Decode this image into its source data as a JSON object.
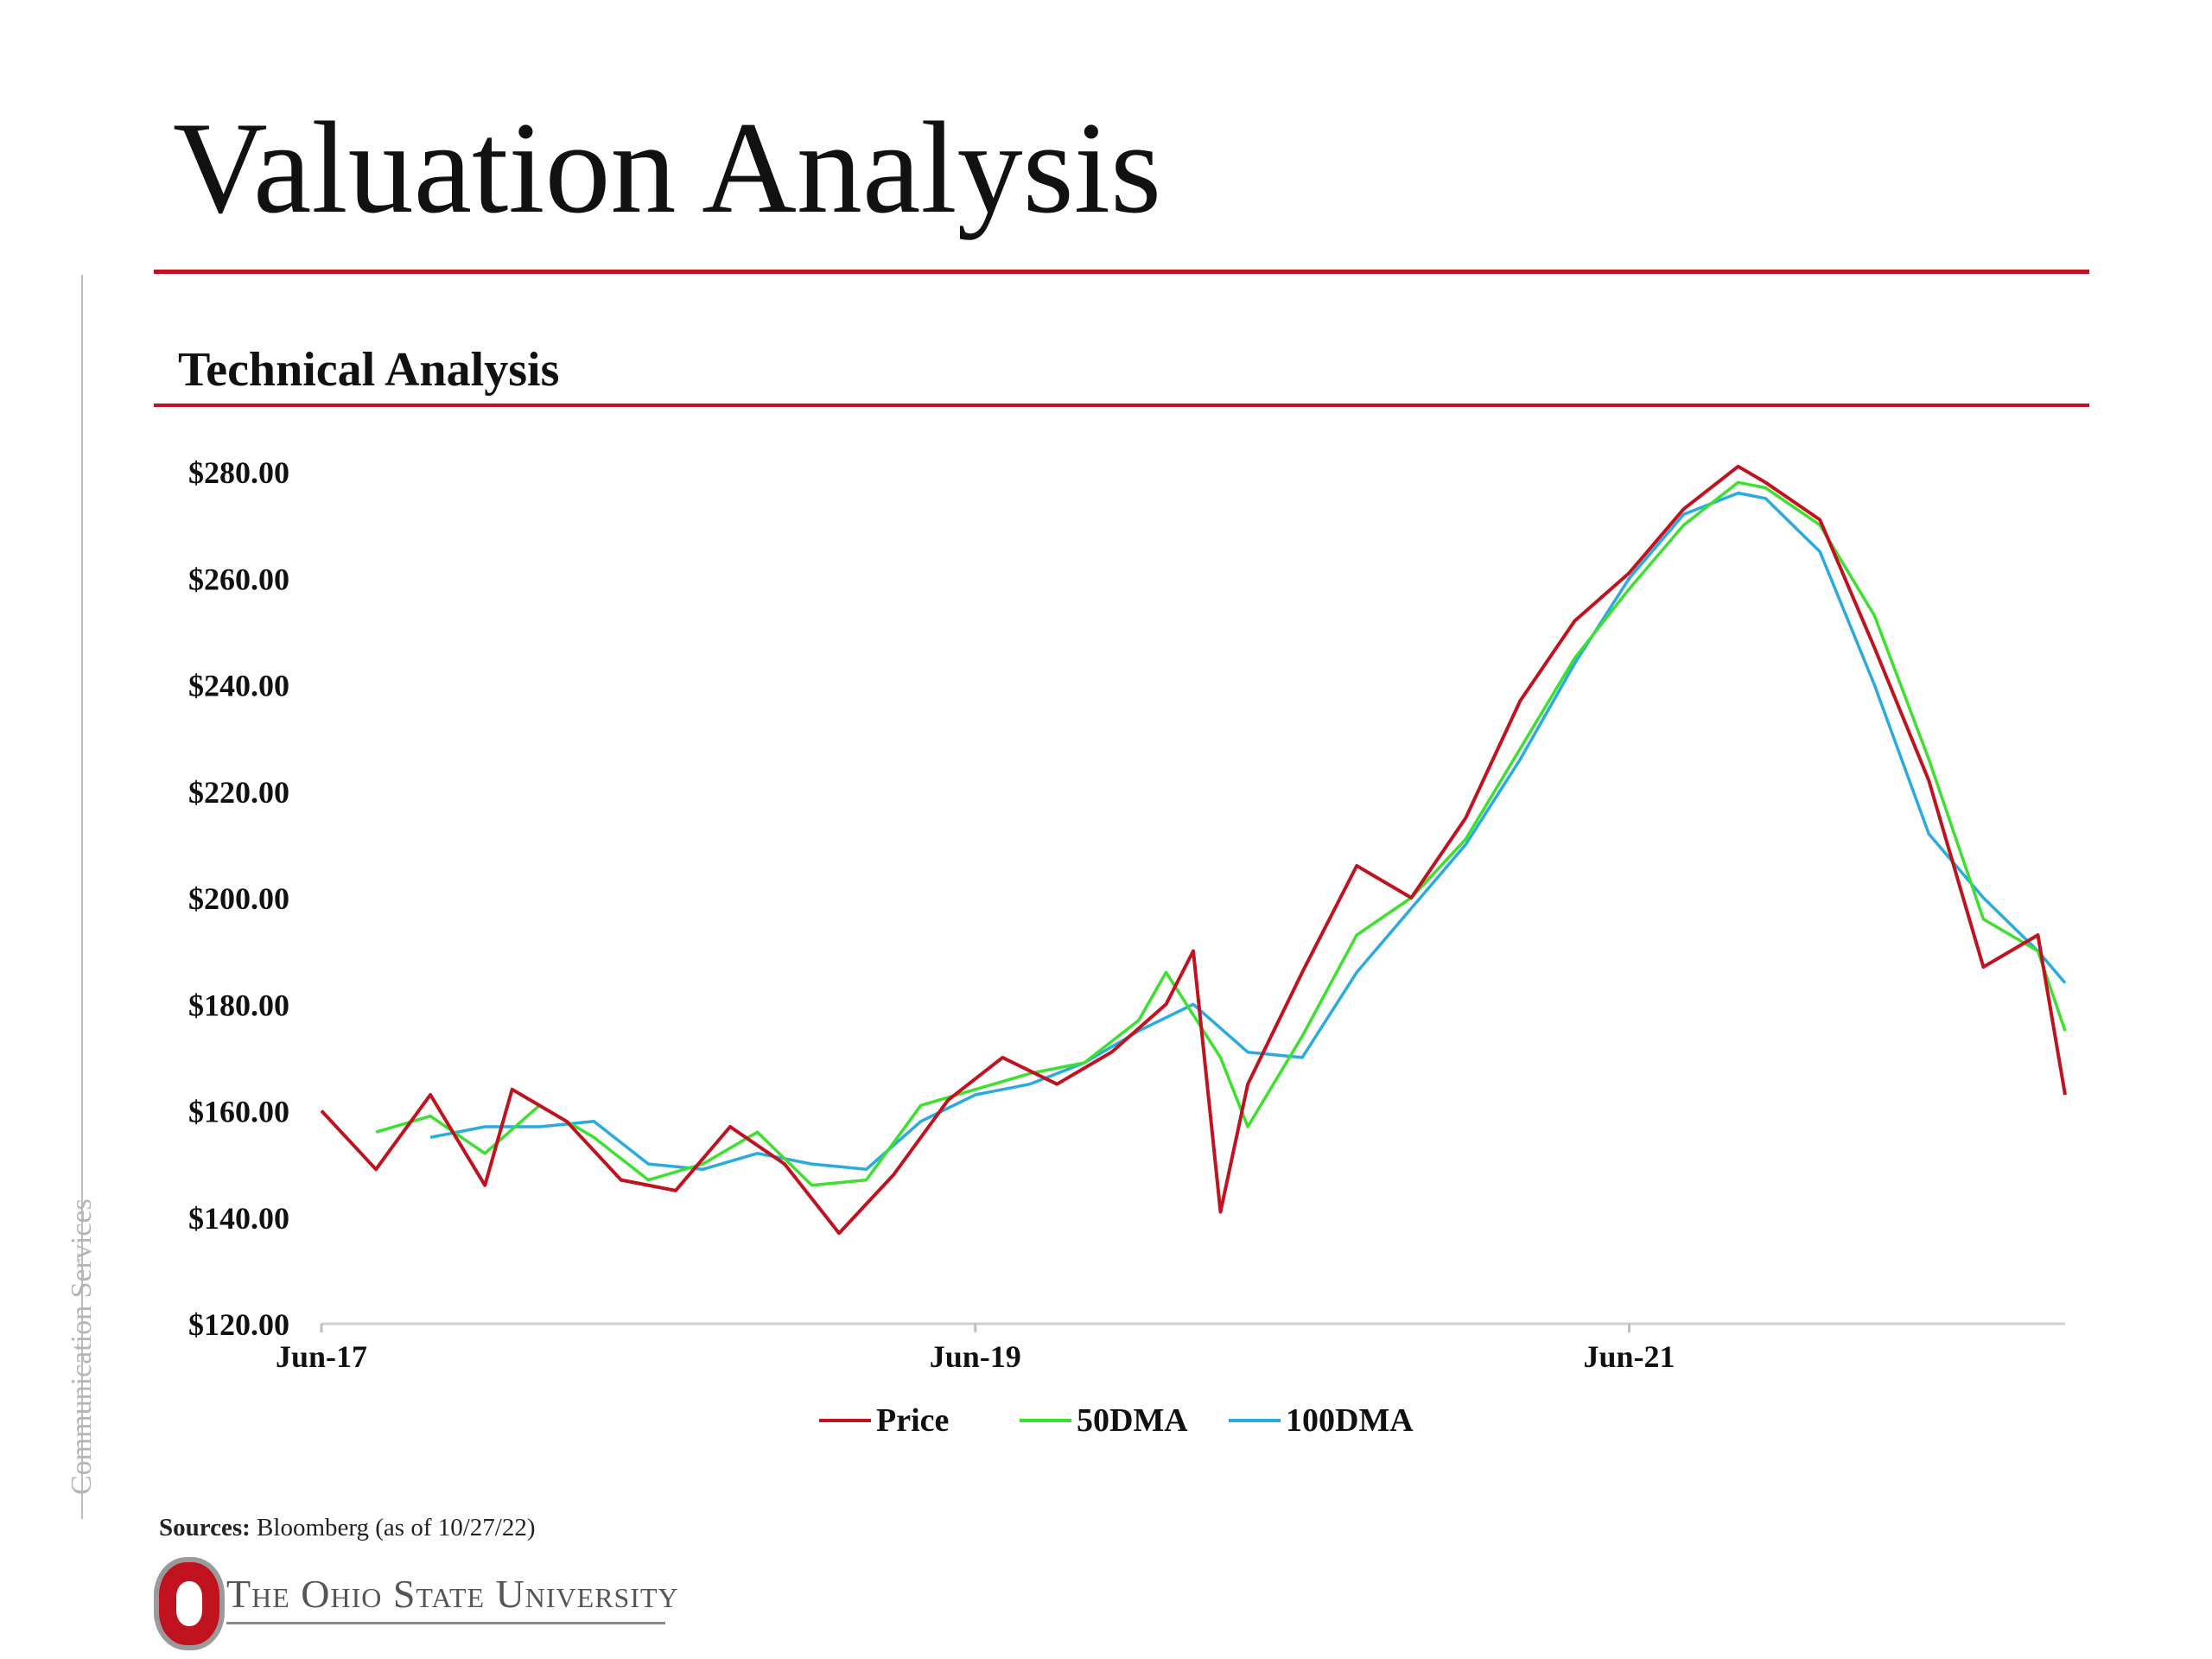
{
  "slide": {
    "title": "Valuation Analysis",
    "subtitle": "Technical Analysis",
    "side_label": "Communication Services",
    "sources_label": "Sources:",
    "sources_text": "Bloomberg (as of 10/27/22)",
    "university": "The Ohio State University",
    "accent_color": "#c1121f"
  },
  "chart_data": {
    "type": "line",
    "title": "",
    "xlabel": "",
    "ylabel": "",
    "x_ticks": [
      "Jun-17",
      "Jun-19",
      "Jun-21"
    ],
    "x_range": [
      "2017-06",
      "2022-10"
    ],
    "ylim": [
      120,
      280
    ],
    "y_ticks": [
      120,
      140,
      160,
      180,
      200,
      220,
      240,
      260,
      280
    ],
    "y_tick_labels": [
      "$120.00",
      "$140.00",
      "$160.00",
      "$180.00",
      "$200.00",
      "$220.00",
      "$240.00",
      "$260.00",
      "$280.00"
    ],
    "grid": false,
    "legend_position": "bottom",
    "series": [
      {
        "name": "Price",
        "color": "#c1121f",
        "x": [
          "2017-06",
          "2017-08",
          "2017-10",
          "2017-12",
          "2018-01",
          "2018-03",
          "2018-05",
          "2018-07",
          "2018-09",
          "2018-11",
          "2019-01",
          "2019-03",
          "2019-05",
          "2019-07",
          "2019-09",
          "2019-11",
          "2020-01",
          "2020-02",
          "2020-03",
          "2020-04",
          "2020-06",
          "2020-08",
          "2020-10",
          "2020-12",
          "2021-02",
          "2021-04",
          "2021-06",
          "2021-08",
          "2021-10",
          "2021-11",
          "2022-01",
          "2022-03",
          "2022-05",
          "2022-07",
          "2022-09",
          "2022-10"
        ],
        "values": [
          160,
          149,
          163,
          146,
          164,
          158,
          147,
          145,
          157,
          150,
          137,
          148,
          162,
          170,
          165,
          171,
          180,
          190,
          141,
          165,
          186,
          206,
          200,
          215,
          237,
          252,
          261,
          273,
          281,
          278,
          271,
          247,
          222,
          187,
          193,
          163
        ]
      },
      {
        "name": "50DMA",
        "color": "#3ee02f",
        "x": [
          "2017-08",
          "2017-10",
          "2017-12",
          "2018-02",
          "2018-04",
          "2018-06",
          "2018-08",
          "2018-10",
          "2018-12",
          "2019-02",
          "2019-04",
          "2019-06",
          "2019-08",
          "2019-10",
          "2019-12",
          "2020-01",
          "2020-03",
          "2020-04",
          "2020-06",
          "2020-08",
          "2020-10",
          "2020-12",
          "2021-02",
          "2021-04",
          "2021-06",
          "2021-08",
          "2021-10",
          "2021-11",
          "2022-01",
          "2022-03",
          "2022-05",
          "2022-07",
          "2022-09",
          "2022-10"
        ],
        "values": [
          156,
          159,
          152,
          161,
          155,
          147,
          150,
          156,
          146,
          147,
          161,
          164,
          167,
          169,
          177,
          186,
          170,
          157,
          174,
          193,
          200,
          211,
          228,
          245,
          258,
          270,
          278,
          277,
          270,
          253,
          226,
          196,
          190,
          175
        ]
      },
      {
        "name": "100DMA",
        "color": "#29abe2",
        "x": [
          "2017-10",
          "2017-12",
          "2018-02",
          "2018-04",
          "2018-06",
          "2018-08",
          "2018-10",
          "2018-12",
          "2019-02",
          "2019-04",
          "2019-06",
          "2019-08",
          "2019-10",
          "2019-12",
          "2020-02",
          "2020-04",
          "2020-06",
          "2020-08",
          "2020-10",
          "2020-12",
          "2021-02",
          "2021-04",
          "2021-06",
          "2021-08",
          "2021-10",
          "2021-11",
          "2022-01",
          "2022-03",
          "2022-05",
          "2022-07",
          "2022-09",
          "2022-10"
        ],
        "values": [
          155,
          157,
          157,
          158,
          150,
          149,
          152,
          150,
          149,
          158,
          163,
          165,
          169,
          175,
          180,
          171,
          170,
          186,
          198,
          210,
          226,
          244,
          260,
          272,
          276,
          275,
          265,
          240,
          212,
          200,
          190,
          184
        ]
      }
    ]
  }
}
